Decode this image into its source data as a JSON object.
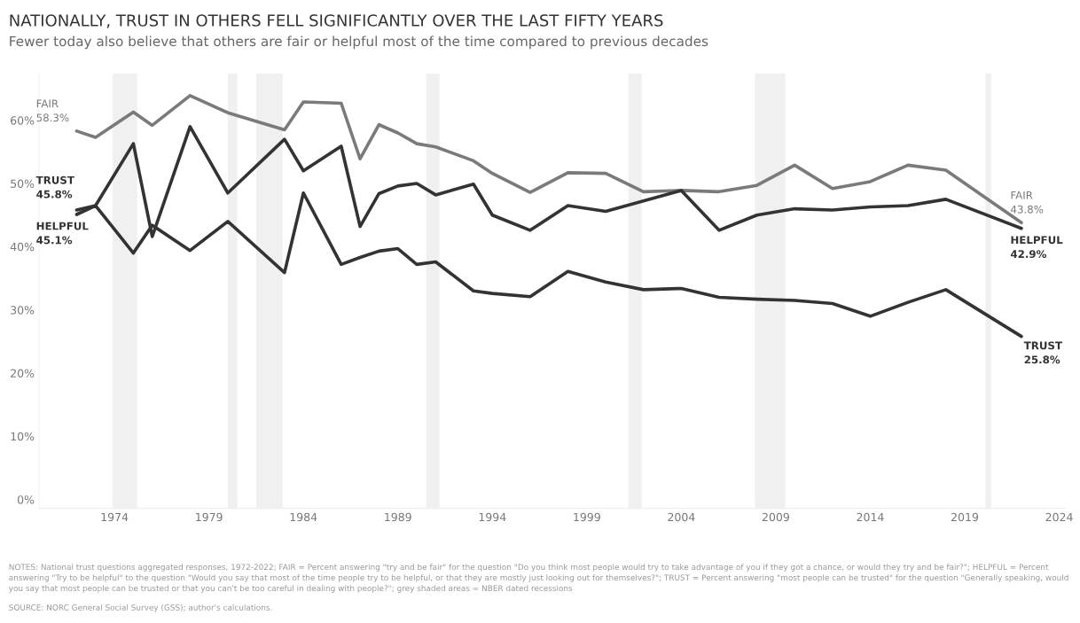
{
  "chart_data": {
    "type": "line",
    "title": "NATIONALLY, TRUST IN OTHERS FELL SIGNIFICANTLY OVER THE LAST FIFTY YEARS",
    "subtitle": "Fewer today also believe that others are fair or helpful most of the time compared to previous decades",
    "xlim": [
      1970,
      2024.3
    ],
    "xticks": [
      1974,
      1979,
      1984,
      1989,
      1994,
      1999,
      2004,
      2009,
      2014,
      2019,
      2024
    ],
    "ylim": [
      -1.4,
      67.4
    ],
    "yticks": [
      {
        "value": 0,
        "label": "0%"
      },
      {
        "value": 10,
        "label": "10%"
      },
      {
        "value": 20,
        "label": "20%"
      },
      {
        "value": 30,
        "label": "30%"
      },
      {
        "value": 40,
        "label": "40%"
      },
      {
        "value": 50,
        "label": "50%"
      },
      {
        "value": 60,
        "label": "60%"
      }
    ],
    "grid": false,
    "legend": false,
    "series": [
      {
        "name": "FAIR",
        "color": "#7a7a7a",
        "x": [
          1972,
          1973,
          1975,
          1976,
          1978,
          1980,
          1983,
          1984,
          1986,
          1987,
          1988,
          1989,
          1990,
          1991,
          1993,
          1994,
          1996,
          1998,
          2000,
          2002,
          2004,
          2006,
          2008,
          2010,
          2012,
          2014,
          2016,
          2018,
          2022
        ],
        "values": [
          58.3,
          57.3,
          61.3,
          59.2,
          63.9,
          61.2,
          58.5,
          62.9,
          62.7,
          53.9,
          59.3,
          58.0,
          56.3,
          55.8,
          53.6,
          51.6,
          48.6,
          51.7,
          51.6,
          48.7,
          48.9,
          48.7,
          49.7,
          52.9,
          49.2,
          50.3,
          52.9,
          52.1,
          43.8
        ],
        "value_labels": [
          "58.3%",
          null,
          null,
          null,
          null,
          null,
          null,
          null,
          null,
          null,
          null,
          null,
          null,
          null,
          null,
          null,
          null,
          null,
          null,
          null,
          null,
          null,
          null,
          null,
          null,
          null,
          null,
          null,
          "43.8%"
        ]
      },
      {
        "name": "TRUST",
        "color": "#333333",
        "x": [
          1972,
          1973,
          1975,
          1976,
          1978,
          1980,
          1983,
          1984,
          1986,
          1987,
          1988,
          1989,
          1990,
          1991,
          1993,
          1994,
          1996,
          1998,
          2000,
          2002,
          2004,
          2006,
          2008,
          2010,
          2012,
          2014,
          2016,
          2018,
          2022
        ],
        "values": [
          45.8,
          46.5,
          39.0,
          43.4,
          39.4,
          44.0,
          35.9,
          48.5,
          37.2,
          38.3,
          39.3,
          39.7,
          37.2,
          37.6,
          33.0,
          32.6,
          32.1,
          36.1,
          34.4,
          33.2,
          33.4,
          32.0,
          31.7,
          31.5,
          31.0,
          29.0,
          31.2,
          33.2,
          25.8
        ],
        "value_labels": [
          "45.8%",
          null,
          null,
          null,
          null,
          null,
          null,
          null,
          null,
          null,
          null,
          null,
          null,
          null,
          null,
          null,
          null,
          null,
          null,
          null,
          null,
          null,
          null,
          null,
          null,
          null,
          null,
          null,
          "25.8%"
        ]
      },
      {
        "name": "HELPFUL",
        "color": "#333333",
        "x": [
          1972,
          1973,
          1975,
          1976,
          1978,
          1980,
          1983,
          1984,
          1986,
          1987,
          1988,
          1989,
          1990,
          1991,
          1993,
          1994,
          1996,
          1998,
          2000,
          2004,
          2006,
          2008,
          2010,
          2012,
          2014,
          2016,
          2018,
          2022
        ],
        "values": [
          45.1,
          46.5,
          56.3,
          41.6,
          59.0,
          48.5,
          57.0,
          52.0,
          55.9,
          43.2,
          48.4,
          49.6,
          50.0,
          48.2,
          49.9,
          45.0,
          42.6,
          46.5,
          45.6,
          48.9,
          42.6,
          45.0,
          46.0,
          45.8,
          46.3,
          46.5,
          47.5,
          42.9
        ],
        "value_labels": [
          "45.1%",
          null,
          null,
          null,
          null,
          null,
          null,
          null,
          null,
          null,
          null,
          null,
          null,
          null,
          null,
          null,
          null,
          null,
          null,
          null,
          null,
          null,
          null,
          null,
          null,
          null,
          null,
          "42.9%"
        ]
      }
    ],
    "bands": [
      {
        "axis": "x",
        "from": 1973.9,
        "to": 1975.2,
        "color": "#f0f0f0"
      },
      {
        "axis": "x",
        "from": 1980.0,
        "to": 1980.5,
        "color": "#f0f0f0"
      },
      {
        "axis": "x",
        "from": 1981.5,
        "to": 1982.9,
        "color": "#f0f0f0"
      },
      {
        "axis": "x",
        "from": 1990.5,
        "to": 1991.2,
        "color": "#f0f0f0"
      },
      {
        "axis": "x",
        "from": 2001.2,
        "to": 2001.9,
        "color": "#f0f0f0"
      },
      {
        "axis": "x",
        "from": 2007.9,
        "to": 2009.5,
        "color": "#f0f0f0"
      },
      {
        "axis": "x",
        "from": 2020.1,
        "to": 2020.4,
        "color": "#f0f0f0"
      }
    ],
    "annotations": [
      "NOTES: National trust questions aggregated responses, 1972-2022; FAIR = Percent answering \"try and be fair\" for the question \"Do you think most people would try to take advantage of you if they got a chance, or would they try and be fair?\"; HELPFUL = Percent answering \"Try to be helpful\" to the question \"Would you say that most of the time people try to be helpful, or that they are mostly just looking out for themselves?\"; TRUST = Percent answering \"most people can be trusted\" for the question \"Generally speaking, would you say that most people can be trusted or that you can't be too careful in dealing with people?\"; grey shaded areas = NBER dated recessions",
      "SOURCE: NORC General Social Survey (GSS); author's calculations."
    ]
  }
}
